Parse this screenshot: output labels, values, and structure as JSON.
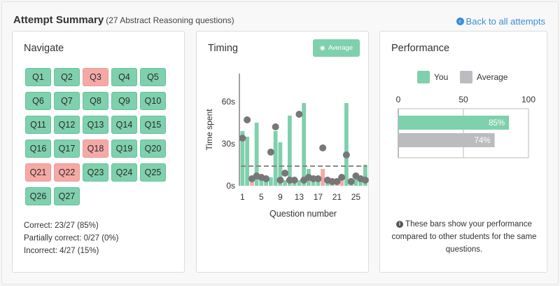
{
  "header": {
    "title": "Attempt Summary",
    "subtitle": "(27 Abstract Reasoning questions)",
    "back_link": "Back to all attempts",
    "back_icon": "arrow-circle-left-icon"
  },
  "navigate": {
    "title": "Navigate",
    "questions": [
      {
        "label": "Q1",
        "status": "correct"
      },
      {
        "label": "Q2",
        "status": "correct"
      },
      {
        "label": "Q3",
        "status": "incorrect"
      },
      {
        "label": "Q4",
        "status": "correct"
      },
      {
        "label": "Q5",
        "status": "correct"
      },
      {
        "label": "Q6",
        "status": "correct"
      },
      {
        "label": "Q7",
        "status": "correct"
      },
      {
        "label": "Q8",
        "status": "correct"
      },
      {
        "label": "Q9",
        "status": "correct"
      },
      {
        "label": "Q10",
        "status": "correct"
      },
      {
        "label": "Q11",
        "status": "correct"
      },
      {
        "label": "Q12",
        "status": "correct"
      },
      {
        "label": "Q13",
        "status": "correct"
      },
      {
        "label": "Q14",
        "status": "correct"
      },
      {
        "label": "Q15",
        "status": "correct"
      },
      {
        "label": "Q16",
        "status": "correct"
      },
      {
        "label": "Q17",
        "status": "correct"
      },
      {
        "label": "Q18",
        "status": "incorrect"
      },
      {
        "label": "Q19",
        "status": "correct"
      },
      {
        "label": "Q20",
        "status": "correct"
      },
      {
        "label": "Q21",
        "status": "incorrect"
      },
      {
        "label": "Q22",
        "status": "incorrect"
      },
      {
        "label": "Q23",
        "status": "correct"
      },
      {
        "label": "Q24",
        "status": "correct"
      },
      {
        "label": "Q25",
        "status": "correct"
      },
      {
        "label": "Q26",
        "status": "correct"
      },
      {
        "label": "Q27",
        "status": "correct"
      }
    ],
    "stats": {
      "correct": "Correct: 23/27 (85%)",
      "partial": "Partially correct: 0/27 (0%)",
      "incorrect": "Incorrect: 4/27 (15%)"
    }
  },
  "timing": {
    "title": "Timing",
    "average_button": "Average",
    "average_icon": "eye-icon"
  },
  "performance": {
    "title": "Performance",
    "legend_you": "You",
    "legend_average": "Average",
    "note": "These bars show your performance compared to other students for the same questions.",
    "note_icon": "info-circle-icon"
  },
  "colors": {
    "correct": "#7fd0ad",
    "incorrect": "#f5a9a5",
    "average": "#bbbcbf",
    "dot": "#777777",
    "link": "#3a8fd9"
  },
  "chart_data": [
    {
      "type": "bar",
      "xlabel": "Question number",
      "ylabel": "Time spent",
      "x": [
        1,
        2,
        3,
        4,
        5,
        6,
        7,
        8,
        9,
        10,
        11,
        12,
        13,
        14,
        15,
        16,
        17,
        18,
        19,
        20,
        21,
        22,
        23,
        24,
        25,
        26,
        27
      ],
      "x_ticks": [
        1,
        5,
        9,
        13,
        17,
        21,
        25
      ],
      "y_ticks": [
        {
          "value": 0,
          "label": "0s"
        },
        {
          "value": 30,
          "label": "30s"
        },
        {
          "value": 60,
          "label": "60s"
        }
      ],
      "ylim": [
        0,
        80
      ],
      "average_time": 14,
      "series": [
        {
          "values": [
            39,
            35,
            4,
            45,
            6,
            6,
            6,
            39,
            31,
            4,
            50,
            4,
            4,
            59,
            12,
            7,
            5,
            12,
            5,
            5,
            4,
            6,
            59,
            5,
            8,
            5,
            15
          ],
          "status": [
            "correct",
            "correct",
            "incorrect",
            "correct",
            "correct",
            "correct",
            "correct",
            "correct",
            "correct",
            "correct",
            "correct",
            "correct",
            "correct",
            "correct",
            "correct",
            "correct",
            "correct",
            "incorrect",
            "correct",
            "correct",
            "incorrect",
            "incorrect",
            "correct",
            "correct",
            "correct",
            "correct",
            "correct"
          ]
        },
        {
          "points": [
            34,
            47,
            5,
            7,
            6,
            5,
            24,
            42,
            4,
            9,
            4,
            4,
            51,
            4,
            6,
            5,
            5,
            27,
            4,
            3,
            3,
            6,
            22,
            3,
            7,
            5,
            4
          ]
        }
      ],
      "grid": false
    },
    {
      "type": "bar",
      "orientation": "horizontal",
      "categories": [
        "You",
        "Average"
      ],
      "values": [
        85,
        74
      ],
      "value_labels": [
        "85%",
        "74%"
      ],
      "x_ticks": [
        0,
        50,
        100
      ],
      "xlim": [
        0,
        100
      ],
      "legend": "top"
    }
  ]
}
